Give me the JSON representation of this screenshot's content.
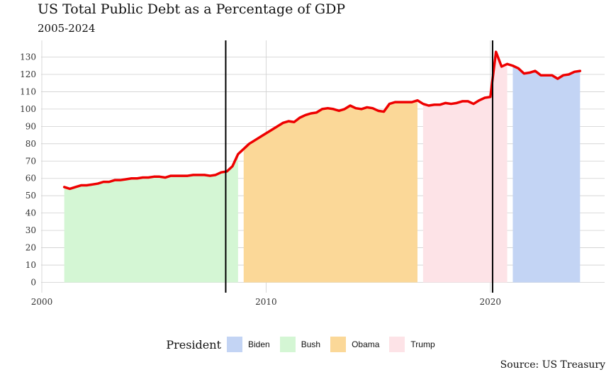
{
  "chart_data": {
    "type": "line",
    "title": "US Total Public Debt as a Percentage of GDP",
    "subtitle": "2005-2024",
    "caption": "Source: US Treasury",
    "xlabel": "",
    "ylabel": "",
    "xlim": [
      2000,
      2025
    ],
    "ylim": [
      0,
      134
    ],
    "x_ticks": [
      2000,
      2010,
      2020
    ],
    "y_ticks": [
      0,
      10,
      20,
      30,
      40,
      50,
      60,
      70,
      80,
      90,
      100,
      110,
      120,
      130
    ],
    "grid": true,
    "legend_placement": "bottom",
    "legend_title": "President",
    "presidents": [
      {
        "name": "Biden",
        "color": "#c3d4f4"
      },
      {
        "name": "Bush",
        "color": "#d4f6d4"
      },
      {
        "name": "Obama",
        "color": "#fbd898"
      },
      {
        "name": "Trump",
        "color": "#fde3e7"
      }
    ],
    "areas": [
      {
        "president": "Bush",
        "x": [
          2001.0,
          2001.25,
          2001.5,
          2001.75,
          2002.0,
          2002.25,
          2002.5,
          2002.75,
          2003.0,
          2003.25,
          2003.5,
          2003.75,
          2004.0,
          2004.25,
          2004.5,
          2004.75,
          2005.0,
          2005.25,
          2005.5,
          2005.75,
          2006.0,
          2006.25,
          2006.5,
          2006.75,
          2007.0,
          2007.25,
          2007.5,
          2007.75,
          2008.0,
          2008.25,
          2008.5,
          2008.75
        ],
        "y": [
          55,
          54,
          55,
          56,
          56,
          56.5,
          57,
          58,
          58,
          59,
          59,
          59.5,
          60,
          60,
          60.5,
          60.5,
          61,
          61,
          60.5,
          61.5,
          61.5,
          61.5,
          61.5,
          62,
          62,
          62,
          61.5,
          62,
          63.5,
          64,
          67,
          74
        ]
      },
      {
        "president": "Obama",
        "x": [
          2009.0,
          2009.25,
          2009.5,
          2009.75,
          2010.0,
          2010.25,
          2010.5,
          2010.75,
          2011.0,
          2011.25,
          2011.5,
          2011.75,
          2012.0,
          2012.25,
          2012.5,
          2012.75,
          2013.0,
          2013.25,
          2013.5,
          2013.75,
          2014.0,
          2014.25,
          2014.5,
          2014.75,
          2015.0,
          2015.25,
          2015.5,
          2015.75,
          2016.0,
          2016.25,
          2016.5,
          2016.75
        ],
        "y": [
          77,
          80,
          82,
          84,
          86,
          88,
          90,
          92,
          93,
          92.5,
          95,
          96.5,
          97.5,
          98,
          100,
          100.5,
          100,
          99,
          100,
          102,
          100.5,
          100,
          101,
          100.5,
          99,
          98.5,
          103,
          104,
          104,
          104,
          104,
          105
        ]
      },
      {
        "president": "Trump",
        "x": [
          2017.0,
          2017.25,
          2017.5,
          2017.75,
          2018.0,
          2018.25,
          2018.5,
          2018.75,
          2019.0,
          2019.25,
          2019.5,
          2019.75,
          2020.0,
          2020.25,
          2020.5,
          2020.75
        ],
        "y": [
          103,
          102,
          102.5,
          102.5,
          103.5,
          103,
          103.5,
          104.5,
          104.5,
          103,
          105,
          106.5,
          107,
          133,
          124.5,
          126
        ]
      },
      {
        "president": "Biden",
        "x": [
          2021.0,
          2021.25,
          2021.5,
          2021.75,
          2022.0,
          2022.25,
          2022.5,
          2022.75,
          2023.0,
          2023.25,
          2023.5,
          2023.75,
          2024.0
        ],
        "y": [
          125,
          123.5,
          120.5,
          121,
          122,
          119.5,
          119.5,
          119.5,
          117.5,
          119.5,
          120,
          121.5,
          122
        ]
      }
    ],
    "series": [
      {
        "color": "#ee0000",
        "x": [
          2001.0,
          2001.25,
          2001.5,
          2001.75,
          2002.0,
          2002.25,
          2002.5,
          2002.75,
          2003.0,
          2003.25,
          2003.5,
          2003.75,
          2004.0,
          2004.25,
          2004.5,
          2004.75,
          2005.0,
          2005.25,
          2005.5,
          2005.75,
          2006.0,
          2006.25,
          2006.5,
          2006.75,
          2007.0,
          2007.25,
          2007.5,
          2007.75,
          2008.0,
          2008.25,
          2008.5,
          2008.75,
          2009.0,
          2009.25,
          2009.5,
          2009.75,
          2010.0,
          2010.25,
          2010.5,
          2010.75,
          2011.0,
          2011.25,
          2011.5,
          2011.75,
          2012.0,
          2012.25,
          2012.5,
          2012.75,
          2013.0,
          2013.25,
          2013.5,
          2013.75,
          2014.0,
          2014.25,
          2014.5,
          2014.75,
          2015.0,
          2015.25,
          2015.5,
          2015.75,
          2016.0,
          2016.25,
          2016.5,
          2016.75,
          2017.0,
          2017.25,
          2017.5,
          2017.75,
          2018.0,
          2018.25,
          2018.5,
          2018.75,
          2019.0,
          2019.25,
          2019.5,
          2019.75,
          2020.0,
          2020.25,
          2020.5,
          2020.75,
          2021.0,
          2021.25,
          2021.5,
          2021.75,
          2022.0,
          2022.25,
          2022.5,
          2022.75,
          2023.0,
          2023.25,
          2023.5,
          2023.75,
          2024.0
        ],
        "y": [
          55,
          54,
          55,
          56,
          56,
          56.5,
          57,
          58,
          58,
          59,
          59,
          59.5,
          60,
          60,
          60.5,
          60.5,
          61,
          61,
          60.5,
          61.5,
          61.5,
          61.5,
          61.5,
          62,
          62,
          62,
          61.5,
          62,
          63.5,
          64,
          67,
          74,
          77,
          80,
          82,
          84,
          86,
          88,
          90,
          92,
          93,
          92.5,
          95,
          96.5,
          97.5,
          98,
          100,
          100.5,
          100,
          99,
          100,
          102,
          100.5,
          100,
          101,
          100.5,
          99,
          98.5,
          103,
          104,
          104,
          104,
          104,
          105,
          103,
          102,
          102.5,
          102.5,
          103.5,
          103,
          103.5,
          104.5,
          104.5,
          103,
          105,
          106.5,
          107,
          133,
          124.5,
          126,
          125,
          123.5,
          120.5,
          121,
          122,
          119.5,
          119.5,
          119.5,
          117.5,
          119.5,
          120,
          121.5,
          122
        ]
      }
    ],
    "vlines": [
      2008.2,
      2020.1
    ]
  }
}
